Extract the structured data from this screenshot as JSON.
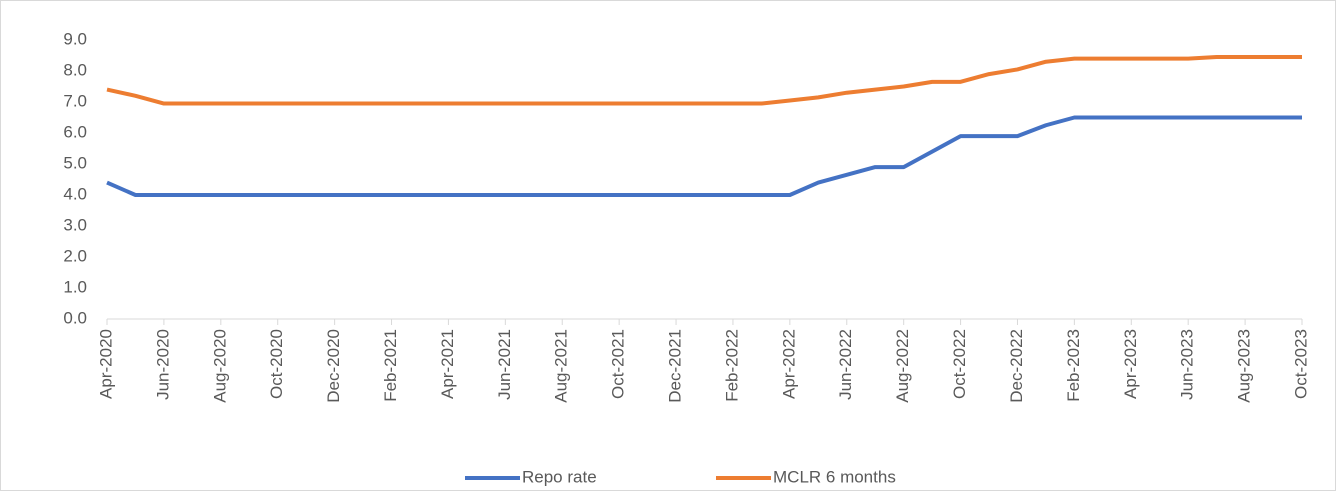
{
  "chart_data": {
    "type": "line",
    "categories": [
      "Apr-2020",
      null,
      "Jun-2020",
      null,
      "Aug-2020",
      null,
      "Oct-2020",
      null,
      "Dec-2020",
      null,
      "Feb-2021",
      null,
      "Apr-2021",
      null,
      "Jun-2021",
      null,
      "Aug-2021",
      null,
      "Oct-2021",
      null,
      "Dec-2021",
      null,
      "Feb-2022",
      null,
      "Apr-2022",
      null,
      "Jun-2022",
      null,
      "Aug-2022",
      null,
      "Oct-2022",
      null,
      "Dec-2022",
      null,
      "Feb-2023",
      null,
      "Apr-2023",
      null,
      "Jun-2023",
      null,
      "Aug-2023",
      null,
      "Oct-2023"
    ],
    "series": [
      {
        "name": "Repo rate",
        "color": "#4472c4",
        "values": [
          4.4,
          4.0,
          4.0,
          4.0,
          4.0,
          4.0,
          4.0,
          4.0,
          4.0,
          4.0,
          4.0,
          4.0,
          4.0,
          4.0,
          4.0,
          4.0,
          4.0,
          4.0,
          4.0,
          4.0,
          4.0,
          4.0,
          4.0,
          4.0,
          4.0,
          4.4,
          4.65,
          4.9,
          4.9,
          5.4,
          5.9,
          5.9,
          5.9,
          6.25,
          6.5,
          6.5,
          6.5,
          6.5,
          6.5,
          6.5,
          6.5,
          6.5,
          6.5
        ]
      },
      {
        "name": "MCLR 6 months",
        "color": "#ed7d31",
        "values": [
          7.4,
          7.2,
          6.95,
          6.95,
          6.95,
          6.95,
          6.95,
          6.95,
          6.95,
          6.95,
          6.95,
          6.95,
          6.95,
          6.95,
          6.95,
          6.95,
          6.95,
          6.95,
          6.95,
          6.95,
          6.95,
          6.95,
          6.95,
          6.95,
          7.05,
          7.15,
          7.3,
          7.4,
          7.5,
          7.65,
          7.65,
          7.9,
          8.05,
          8.3,
          8.4,
          8.4,
          8.4,
          8.4,
          8.4,
          8.45,
          8.45,
          8.45,
          8.45
        ]
      }
    ],
    "ylim": [
      0,
      9
    ],
    "yticks": [
      {
        "value": 0,
        "label": "0.0"
      },
      {
        "value": 1,
        "label": "1.0"
      },
      {
        "value": 2,
        "label": "2.0"
      },
      {
        "value": 3,
        "label": "3.0"
      },
      {
        "value": 4,
        "label": "4.0"
      },
      {
        "value": 5,
        "label": "5.0"
      },
      {
        "value": 6,
        "label": "6.0"
      },
      {
        "value": 7,
        "label": "7.0"
      },
      {
        "value": 8,
        "label": "8.0"
      },
      {
        "value": 9,
        "label": "9.0"
      }
    ],
    "grid": false,
    "legend": "bottom"
  }
}
